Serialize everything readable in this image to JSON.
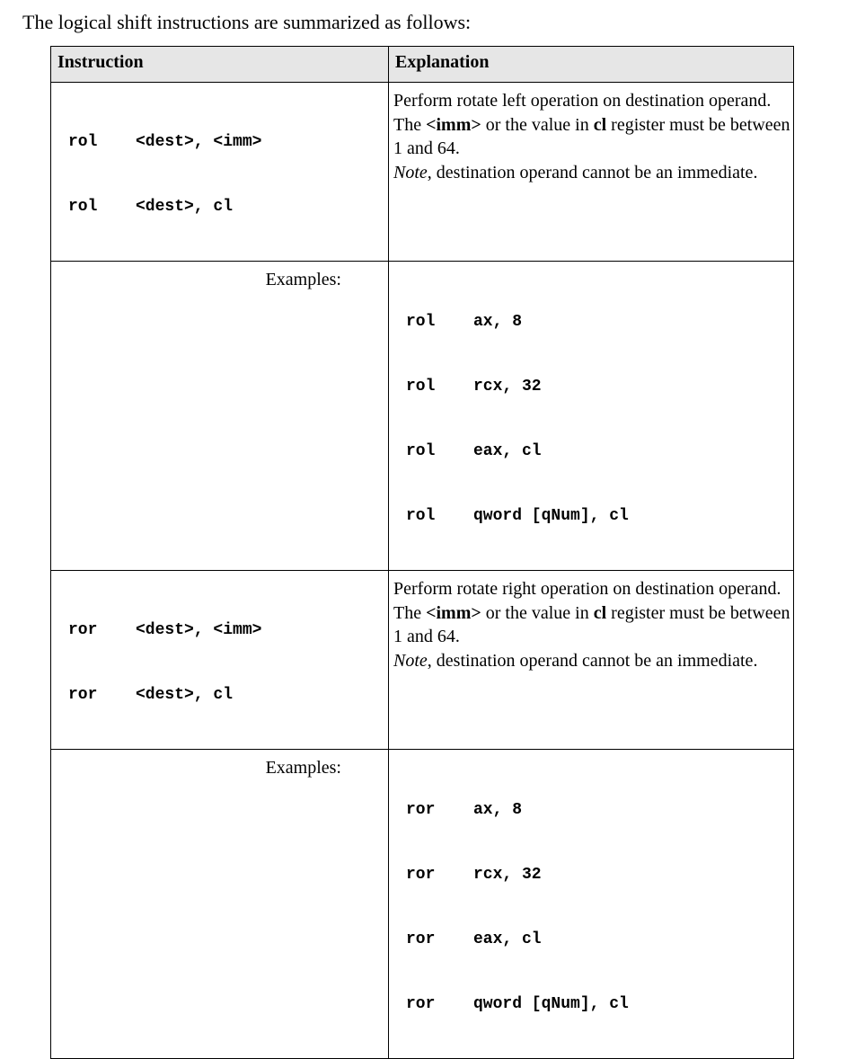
{
  "intro": "The logical shift instructions are summarized as follows:",
  "table": {
    "headers": [
      "Instruction",
      "Explanation"
    ],
    "rows": [
      {
        "syntax": [
          {
            "mnemonic": "rol",
            "operands": "<dest>, <imm>"
          },
          {
            "mnemonic": "rol",
            "operands": "<dest>, cl"
          }
        ],
        "explanation": {
          "line1": "Perform rotate left operation on destination operand.",
          "line2_pre": "The ",
          "line2_bold1": "<imm>",
          "line2_mid": " or the value in ",
          "line2_bold2": "cl",
          "line2_post": " register must be between 1 and 64.",
          "note_label": "Note",
          "note_text": ", destination operand cannot be an immediate."
        },
        "examples_label": "Examples:",
        "examples": [
          {
            "mnemonic": "rol",
            "operands": "ax, 8"
          },
          {
            "mnemonic": "rol",
            "operands": "rcx, 32"
          },
          {
            "mnemonic": "rol",
            "operands": "eax, cl"
          },
          {
            "mnemonic": "rol",
            "operands": "qword [qNum], cl"
          }
        ]
      },
      {
        "syntax": [
          {
            "mnemonic": "ror",
            "operands": "<dest>, <imm>"
          },
          {
            "mnemonic": "ror",
            "operands": "<dest>, cl"
          }
        ],
        "explanation": {
          "line1": "Perform rotate right operation on destination operand.",
          "line2_pre": "The ",
          "line2_bold1": "<imm>",
          "line2_mid": " or the value in ",
          "line2_bold2": "cl",
          "line2_post": " register must be between 1 and 64.",
          "note_label": "Note",
          "note_text": ", destination operand cannot be an immediate."
        },
        "examples_label": "Examples:",
        "examples": [
          {
            "mnemonic": "ror",
            "operands": "ax, 8"
          },
          {
            "mnemonic": "ror",
            "operands": "rcx, 32"
          },
          {
            "mnemonic": "ror",
            "operands": "eax, cl"
          },
          {
            "mnemonic": "ror",
            "operands": "qword [qNum], cl"
          }
        ]
      }
    ]
  }
}
